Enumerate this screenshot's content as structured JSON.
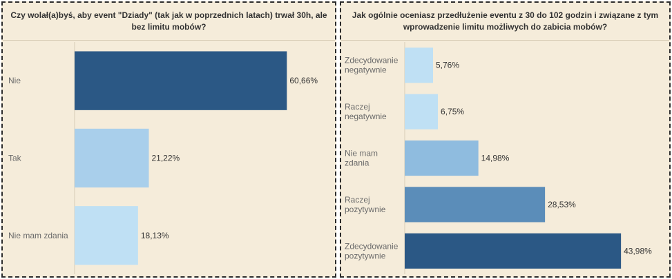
{
  "chart_data": [
    {
      "type": "bar",
      "orientation": "horizontal",
      "title": "Czy wolał(a)byś, aby event \"Dziady\" (tak jak w poprzednich latach) trwał 30h, ale bez limitu mobów?",
      "categories": [
        "Nie",
        "Tak",
        "Nie mam zdania"
      ],
      "values": [
        60.66,
        21.22,
        18.13
      ],
      "value_labels": [
        "60,66%",
        "21,22%",
        "18,13%"
      ],
      "colors": [
        "#2b5885",
        "#a9cfeb",
        "#bfe0f4"
      ],
      "xlim": [
        0,
        75
      ],
      "grid": false
    },
    {
      "type": "bar",
      "orientation": "horizontal",
      "title": "Jak ogólnie oceniasz przedłużenie eventu z 30 do 102 godzin i związane z tym wprowadzenie limitu możliwych do zabicia mobów?",
      "categories": [
        [
          "Zdecydowanie",
          "negatywnie"
        ],
        [
          "Raczej",
          "negatywnie"
        ],
        [
          "Nie mam",
          "zdania"
        ],
        [
          "Raczej",
          "pozytywnie"
        ],
        [
          "Zdecydowanie",
          "pozytywnie"
        ]
      ],
      "values": [
        5.76,
        6.75,
        14.98,
        28.53,
        43.98
      ],
      "value_labels": [
        "5,76%",
        "6,75%",
        "14,98%",
        "28,53%",
        "43,98%"
      ],
      "colors": [
        "#bfe0f4",
        "#bfe0f4",
        "#8fbcdf",
        "#5b8db9",
        "#2b5885"
      ],
      "xlim": [
        0,
        50
      ],
      "grid": false
    }
  ]
}
